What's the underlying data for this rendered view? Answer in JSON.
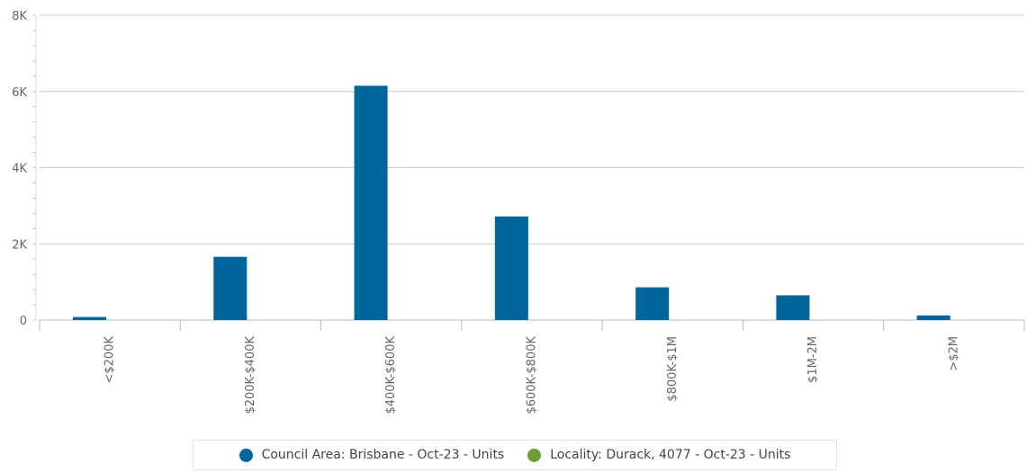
{
  "colors": {
    "series_primary": "#00669c",
    "series_secondary": "#6f9c3a",
    "grid": "#c8c8c8",
    "axis_text": "#666666"
  },
  "chart_data": {
    "type": "bar",
    "categories": [
      "<$200K",
      "$200K-$400K",
      "$400K-$600K",
      "$600K-$800K",
      "$800K-$1M",
      "$1M-2M",
      ">$2M"
    ],
    "series": [
      {
        "name": "Council Area: Brisbane - Oct-23 - Units",
        "color": "#00669c",
        "values": [
          80,
          1660,
          6150,
          2720,
          860,
          650,
          120
        ]
      },
      {
        "name": "Locality: Durack, 4077 - Oct-23 - Units",
        "color": "#6f9c3a",
        "values": [
          0,
          0,
          0,
          0,
          0,
          0,
          0
        ]
      }
    ],
    "ylim": [
      0,
      8000
    ],
    "yticks": [
      0,
      2000,
      4000,
      6000,
      8000
    ],
    "ytick_labels": [
      "0",
      "2K",
      "4K",
      "6K",
      "8K"
    ],
    "grid": true,
    "legend_position": "bottom-center",
    "title": "",
    "xlabel": "",
    "ylabel": ""
  }
}
